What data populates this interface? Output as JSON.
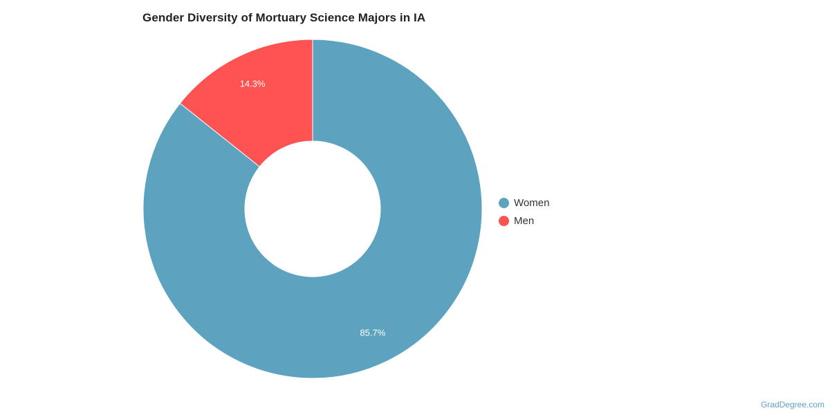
{
  "chart_data": {
    "type": "pie",
    "title": "Gender Diversity of Mortuary Science Majors in IA",
    "categories": [
      "Women",
      "Men"
    ],
    "values": [
      85.7,
      14.3
    ],
    "data_labels": [
      "85.7%",
      "14.3%"
    ],
    "colors": [
      "#5da2bf",
      "#fe5353"
    ],
    "donut": true,
    "legend_position": "right"
  },
  "legend": {
    "items": [
      {
        "label": "Women",
        "color": "#5da2bf"
      },
      {
        "label": "Men",
        "color": "#fe5353"
      }
    ]
  },
  "source": {
    "label": "GradDegree.com"
  }
}
